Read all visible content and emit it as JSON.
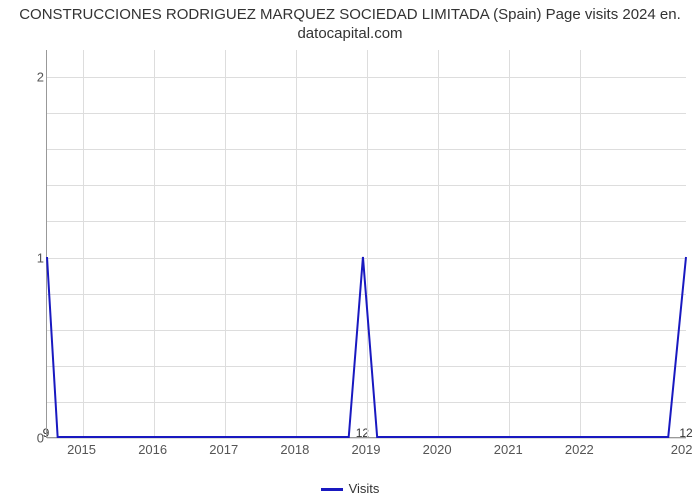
{
  "chart": {
    "type": "line",
    "title_line1": "CONSTRUCCIONES RODRIGUEZ MARQUEZ SOCIEDAD LIMITADA (Spain) Page visits 2024 en.",
    "title_line2": "datocapital.com",
    "title_fontsize": 15,
    "title_color": "#333333",
    "background_color": "#ffffff",
    "grid_color": "#dddddd",
    "axis_color": "#999999",
    "tick_font_color": "#555555",
    "tick_fontsize": 13,
    "x": {
      "min": 2014.5,
      "max": 2023.5,
      "ticks": [
        2015,
        2016,
        2017,
        2018,
        2019,
        2020,
        2021,
        2022
      ],
      "tick_labels": [
        "2015",
        "2016",
        "2017",
        "2018",
        "2019",
        "2020",
        "2021",
        "2022"
      ],
      "rightmost_tick_label": "202"
    },
    "y": {
      "min": 0,
      "max": 2.15,
      "ticks": [
        0,
        1,
        2
      ],
      "tick_labels": [
        "0",
        "1",
        "2"
      ],
      "minor_gridlines": [
        0.2,
        0.4,
        0.6,
        0.8,
        1.2,
        1.4,
        1.6,
        1.8
      ]
    },
    "series": {
      "name": "Visits",
      "color": "#1919c0",
      "line_width": 2,
      "points": [
        {
          "x": 2014.5,
          "y": 1.0,
          "label": "9"
        },
        {
          "x": 2014.65,
          "y": 0.0
        },
        {
          "x": 2018.75,
          "y": 0.0
        },
        {
          "x": 2018.95,
          "y": 1.0,
          "label": "12"
        },
        {
          "x": 2019.15,
          "y": 0.0
        },
        {
          "x": 2023.25,
          "y": 0.0
        },
        {
          "x": 2023.5,
          "y": 1.0,
          "label": "12"
        }
      ]
    },
    "legend_label": "Visits"
  }
}
